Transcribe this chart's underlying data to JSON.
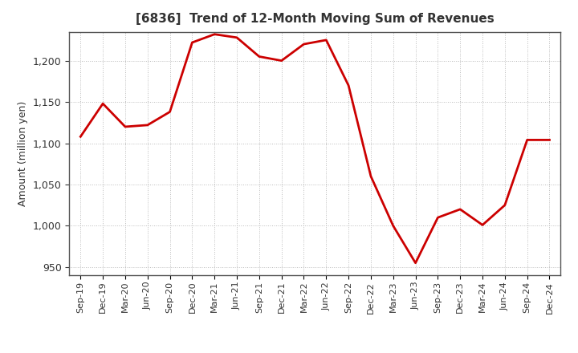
{
  "title": "[6836]  Trend of 12-Month Moving Sum of Revenues",
  "ylabel": "Amount (million yen)",
  "line_color": "#cc0000",
  "background_color": "#ffffff",
  "grid_color": "#bbbbbb",
  "title_color": "#333333",
  "border_color": "#555555",
  "ylim": [
    940,
    1235
  ],
  "yticks": [
    950,
    1000,
    1050,
    1100,
    1150,
    1200
  ],
  "x_labels": [
    "Sep-19",
    "Dec-19",
    "Mar-20",
    "Jun-20",
    "Sep-20",
    "Dec-20",
    "Mar-21",
    "Jun-21",
    "Sep-21",
    "Dec-21",
    "Mar-22",
    "Jun-22",
    "Sep-22",
    "Dec-22",
    "Mar-23",
    "Jun-23",
    "Sep-23",
    "Dec-23",
    "Mar-24",
    "Jun-24",
    "Sep-24",
    "Dec-24"
  ],
  "values": [
    1108,
    1148,
    1120,
    1122,
    1138,
    1222,
    1232,
    1228,
    1205,
    1200,
    1220,
    1225,
    1170,
    1060,
    1000,
    955,
    1010,
    1020,
    1001,
    1025,
    1104,
    1104
  ]
}
